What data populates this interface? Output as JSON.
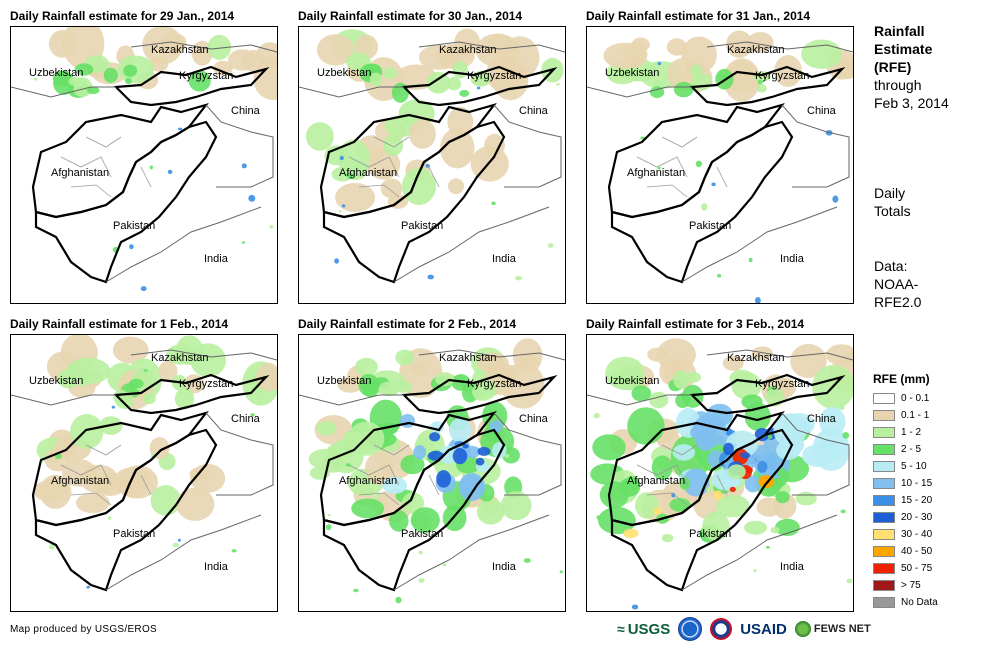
{
  "panels": [
    {
      "title": "Daily Rainfall estimate for 29 Jan., 2014",
      "intensity": 0
    },
    {
      "title": "Daily Rainfall estimate for 30 Jan., 2014",
      "intensity": 1
    },
    {
      "title": "Daily Rainfall estimate for 31 Jan., 2014",
      "intensity": 0
    },
    {
      "title": "Daily Rainfall estimate for 1 Feb., 2014",
      "intensity": 1
    },
    {
      "title": "Daily Rainfall estimate for 2 Feb., 2014",
      "intensity": 2
    },
    {
      "title": "Daily Rainfall estimate for 3 Feb., 2014",
      "intensity": 3
    }
  ],
  "country_labels": {
    "kazakhstan": "Kazakhstan",
    "uzbekistan": "Uzbekistan",
    "kyrgyzstan": "Kyrgyzstan",
    "china": "China",
    "afghanistan": "Afghanistan",
    "pakistan": "Pakistan",
    "india": "India"
  },
  "sidebar": {
    "title_lines": [
      "Rainfall",
      "Estimate",
      "(RFE)"
    ],
    "through_lines": [
      "through",
      "Feb 3, 2014"
    ],
    "totals_lines": [
      "Daily",
      "Totals"
    ],
    "data_lines": [
      "Data:",
      "NOAA-",
      "RFE2.0"
    ]
  },
  "legend": {
    "title": "RFE (mm)",
    "items": [
      {
        "label": "0 - 0.1",
        "color": "#ffffff"
      },
      {
        "label": "0.1 - 1",
        "color": "#e8d5b0"
      },
      {
        "label": "1 - 2",
        "color": "#b8f0a0"
      },
      {
        "label": "2 - 5",
        "color": "#66e066"
      },
      {
        "label": "5 - 10",
        "color": "#b8ecf5"
      },
      {
        "label": "10 - 15",
        "color": "#80bfef"
      },
      {
        "label": "15 - 20",
        "color": "#3c8fe6"
      },
      {
        "label": "20 - 30",
        "color": "#1d5fd6"
      },
      {
        "label": "30 - 40",
        "color": "#ffe070"
      },
      {
        "label": "40 - 50",
        "color": "#ffa500"
      },
      {
        "label": "50 - 75",
        "color": "#ee2200"
      },
      {
        "label": "> 75",
        "color": "#a01818"
      },
      {
        "label": "No Data",
        "color": "#999999"
      }
    ]
  },
  "credit": "Map produced by USGS/EROS",
  "logos": {
    "usgs": "USGS",
    "usaid": "USAID",
    "fews": "FEWS NET"
  }
}
